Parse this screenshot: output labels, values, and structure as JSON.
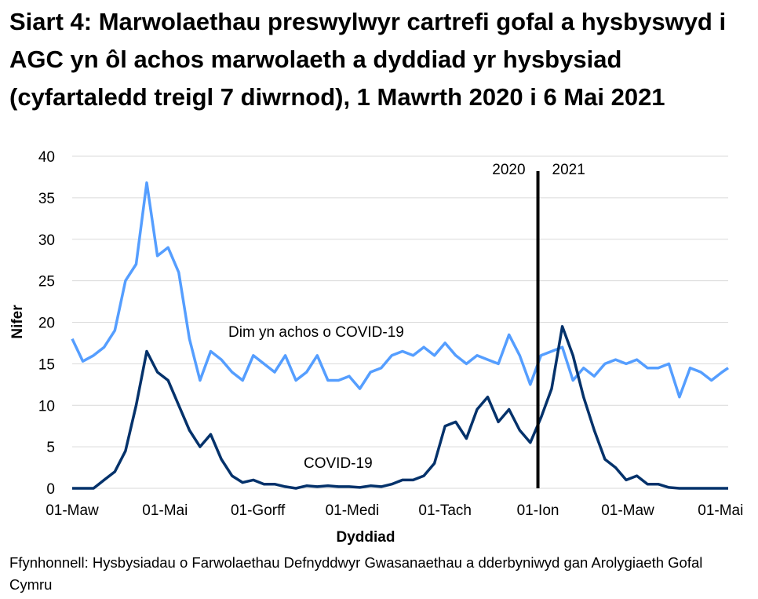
{
  "chart_data": {
    "type": "line",
    "title": "Siart 4: Marwolaethau preswylwyr cartrefi gofal a hysbyswyd i AGC yn ôl achos marwolaeth a dyddiad yr hysbysiad (cyfartaledd treigl 7 diwrnod), 1 Mawrth 2020 i 6 Mai 2021",
    "xlabel": "Dyddiad",
    "ylabel": "Nifer",
    "ylim": [
      0,
      40
    ],
    "yticks": [
      0,
      5,
      10,
      15,
      20,
      25,
      30,
      35,
      40
    ],
    "xlim": [
      "2020-03-01",
      "2021-05-06"
    ],
    "xticks": [
      {
        "date": "2020-03-01",
        "label": "01-Maw"
      },
      {
        "date": "2020-05-01",
        "label": "01-Mai"
      },
      {
        "date": "2020-07-01",
        "label": "01-Gorff"
      },
      {
        "date": "2020-09-01",
        "label": "01-Medi"
      },
      {
        "date": "2020-11-01",
        "label": "01-Tach"
      },
      {
        "date": "2021-01-01",
        "label": "01-Ion"
      },
      {
        "date": "2021-03-01",
        "label": "01-Maw"
      },
      {
        "date": "2021-05-01",
        "label": "01-Mai"
      }
    ],
    "grid": "horizontal",
    "x": [
      "2020-03-01",
      "2020-03-08",
      "2020-03-15",
      "2020-03-22",
      "2020-03-29",
      "2020-04-05",
      "2020-04-12",
      "2020-04-19",
      "2020-04-26",
      "2020-05-03",
      "2020-05-10",
      "2020-05-17",
      "2020-05-24",
      "2020-05-31",
      "2020-06-07",
      "2020-06-14",
      "2020-06-21",
      "2020-06-28",
      "2020-07-05",
      "2020-07-12",
      "2020-07-19",
      "2020-07-26",
      "2020-08-02",
      "2020-08-09",
      "2020-08-16",
      "2020-08-23",
      "2020-08-30",
      "2020-09-06",
      "2020-09-13",
      "2020-09-20",
      "2020-09-27",
      "2020-10-04",
      "2020-10-11",
      "2020-10-18",
      "2020-10-25",
      "2020-11-01",
      "2020-11-08",
      "2020-11-15",
      "2020-11-22",
      "2020-11-29",
      "2020-12-06",
      "2020-12-13",
      "2020-12-20",
      "2020-12-27",
      "2021-01-03",
      "2021-01-10",
      "2021-01-17",
      "2021-01-24",
      "2021-01-31",
      "2021-02-07",
      "2021-02-14",
      "2021-02-21",
      "2021-02-28",
      "2021-03-07",
      "2021-03-14",
      "2021-03-21",
      "2021-03-28",
      "2021-04-04",
      "2021-04-11",
      "2021-04-18",
      "2021-04-25",
      "2021-05-02",
      "2021-05-06"
    ],
    "series": [
      {
        "name": "Dim yn achos o COVID-19",
        "color": "#559eff",
        "values": [
          18,
          15.3,
          16,
          17,
          19,
          25,
          27,
          36.8,
          28,
          29,
          26,
          18,
          13,
          16.5,
          15.5,
          14,
          13,
          16,
          15,
          14,
          16,
          13,
          14,
          16,
          13,
          13,
          13.5,
          12,
          14,
          14.5,
          16,
          16.5,
          16,
          17,
          16,
          17.5,
          16,
          15,
          16,
          15.5,
          15,
          18.5,
          16,
          12.5,
          16,
          16.5,
          17,
          13,
          14.5,
          13.5,
          15,
          15.5,
          15,
          15.5,
          14.5,
          14.5,
          15,
          11,
          14.5,
          14,
          13,
          14,
          14.5
        ]
      },
      {
        "name": "COVID-19",
        "color": "#04326b",
        "values": [
          0,
          0,
          0,
          1,
          2,
          4.5,
          10,
          16.5,
          14,
          13,
          10,
          7,
          5,
          6.5,
          3.5,
          1.5,
          0.7,
          1,
          0.5,
          0.5,
          0.2,
          0,
          0.3,
          0.2,
          0.3,
          0.2,
          0.2,
          0.1,
          0.3,
          0.2,
          0.5,
          1,
          1,
          1.5,
          3,
          7.5,
          8,
          6,
          9.5,
          11,
          8,
          9.5,
          7,
          5.5,
          8.5,
          12,
          19.5,
          16,
          11,
          7,
          3.5,
          2.5,
          1,
          1.5,
          0.5,
          0.5,
          0.1,
          0,
          0,
          0,
          0,
          0,
          0
        ]
      }
    ],
    "annotations": [
      {
        "type": "vertical-line",
        "date": "2021-01-01",
        "left_label": "2020",
        "right_label": "2021"
      }
    ]
  },
  "source": "Ffynhonnell: Hysbysiadau o Farwolaethau Defnyddwyr Gwasanaethau a dderbyniwyd gan Arolygiaeth Gofal Cymru"
}
